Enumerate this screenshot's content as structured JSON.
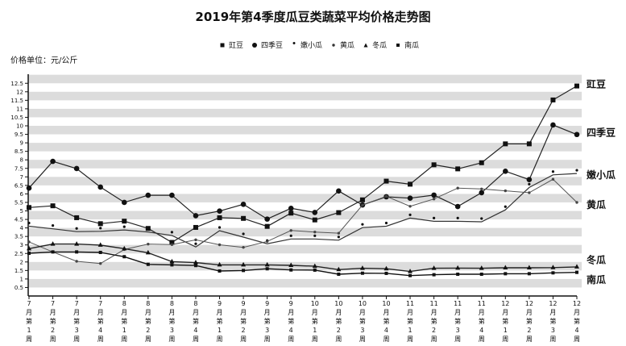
{
  "title": "2019年第4季度瓜豆类蔬菜平均价格走势图",
  "unit_label": "价格单位：元/公斤",
  "legend": [
    {
      "name": "豇豆",
      "marker": "square"
    },
    {
      "name": "四季豆",
      "marker": "circle"
    },
    {
      "name": "嫩小瓜",
      "marker": "dot"
    },
    {
      "name": "黄瓜",
      "marker": "plus"
    },
    {
      "name": "冬瓜",
      "marker": "triangle"
    },
    {
      "name": "南瓜",
      "marker": "small-square"
    }
  ],
  "chart_data": {
    "type": "line",
    "title": "2019年第4季度瓜豆类蔬菜平均价格走势图",
    "xlabel": "",
    "ylabel": "价格单位：元/公斤",
    "ylim": [
      0,
      13
    ],
    "yticks": [
      0.5,
      1,
      1.5,
      2,
      2.5,
      3,
      3.5,
      4,
      4.5,
      5,
      5.5,
      6,
      6.5,
      7,
      7.5,
      8,
      8.5,
      9,
      9.5,
      10,
      10.5,
      11,
      11.5,
      12,
      12.5
    ],
    "grid": "alternating horizontal bands",
    "legend_position": "top",
    "categories": [
      "7月第1周",
      "7月第2周",
      "7月第3周",
      "7月第4周",
      "8月第1周",
      "8月第2周",
      "8月第3周",
      "8月第4周",
      "9月第1周",
      "9月第2周",
      "9月第3周",
      "9月第4周",
      "10月第1周",
      "10月第2周",
      "10月第3周",
      "10月第4周",
      "11月第1周",
      "11月第2周",
      "11月第3周",
      "11月第4周",
      "12月第1周",
      "12月第2周",
      "12月第3周",
      "12月第4周"
    ],
    "category_lines": [
      [
        "7",
        "月",
        "第",
        "1",
        "周"
      ],
      [
        "7",
        "月",
        "第",
        "2",
        "周"
      ],
      [
        "7",
        "月",
        "第",
        "3",
        "周"
      ],
      [
        "7",
        "月",
        "第",
        "4",
        "周"
      ],
      [
        "8",
        "月",
        "第",
        "1",
        "周"
      ],
      [
        "8",
        "月",
        "第",
        "2",
        "周"
      ],
      [
        "8",
        "月",
        "第",
        "3",
        "周"
      ],
      [
        "8",
        "月",
        "第",
        "4",
        "周"
      ],
      [
        "9",
        "月",
        "第",
        "1",
        "周"
      ],
      [
        "9",
        "月",
        "第",
        "2",
        "周"
      ],
      [
        "9",
        "月",
        "第",
        "3",
        "周"
      ],
      [
        "9",
        "月",
        "第",
        "4",
        "周"
      ],
      [
        "10",
        "月",
        "第",
        "1",
        "周"
      ],
      [
        "10",
        "月",
        "第",
        "2",
        "周"
      ],
      [
        "10",
        "月",
        "第",
        "3",
        "周"
      ],
      [
        "10",
        "月",
        "第",
        "4",
        "周"
      ],
      [
        "11",
        "月",
        "第",
        "1",
        "周"
      ],
      [
        "11",
        "月",
        "第",
        "2",
        "周"
      ],
      [
        "11",
        "月",
        "第",
        "3",
        "周"
      ],
      [
        "11",
        "月",
        "第",
        "4",
        "周"
      ],
      [
        "12",
        "月",
        "第",
        "1",
        "周"
      ],
      [
        "12",
        "月",
        "第",
        "2",
        "周"
      ],
      [
        "12",
        "月",
        "第",
        "3",
        "周"
      ],
      [
        "12",
        "月",
        "第",
        "4",
        "周"
      ]
    ],
    "series": [
      {
        "name": "豇豆",
        "marker": "square",
        "values": [
          5.2,
          5.3,
          4.6,
          4.25,
          4.4,
          3.97,
          3.15,
          4.03,
          4.6,
          4.56,
          4.09,
          4.87,
          4.47,
          4.9,
          5.65,
          6.75,
          6.57,
          7.71,
          7.47,
          7.83,
          8.94,
          8.94,
          11.52,
          12.34
        ]
      },
      {
        "name": "四季豆",
        "marker": "circle",
        "values": [
          6.34,
          7.91,
          7.49,
          6.4,
          5.5,
          5.92,
          5.92,
          4.72,
          4.99,
          5.39,
          4.52,
          5.15,
          4.91,
          6.17,
          5.35,
          5.83,
          5.75,
          5.93,
          5.26,
          6.07,
          7.33,
          6.84,
          10.05,
          9.49
        ]
      },
      {
        "name": "嫩小瓜",
        "marker": "dot",
        "values": [
          4.1,
          3.95,
          3.78,
          3.8,
          3.88,
          3.76,
          3.56,
          2.88,
          3.84,
          3.46,
          3.07,
          3.35,
          3.35,
          3.28,
          4.02,
          4.1,
          4.58,
          4.39,
          4.39,
          4.36,
          5.06,
          6.38,
          7.12,
          7.2
        ]
      },
      {
        "name": "黄瓜",
        "marker": "plus",
        "values": [
          3.18,
          2.59,
          2.04,
          1.91,
          2.73,
          3.05,
          3.02,
          3.3,
          3.01,
          2.86,
          3.21,
          3.85,
          3.76,
          3.69,
          5.34,
          5.86,
          5.27,
          5.7,
          6.34,
          6.29,
          6.18,
          6.07,
          6.86,
          5.5
        ]
      },
      {
        "name": "冬瓜",
        "marker": "triangle",
        "values": [
          2.78,
          3.05,
          3.05,
          2.99,
          2.78,
          2.54,
          2.02,
          1.96,
          1.83,
          1.83,
          1.83,
          1.8,
          1.75,
          1.55,
          1.63,
          1.6,
          1.44,
          1.63,
          1.64,
          1.63,
          1.66,
          1.66,
          1.67,
          1.71
        ]
      },
      {
        "name": "南瓜",
        "marker": "small-square",
        "values": [
          2.51,
          2.59,
          2.59,
          2.56,
          2.31,
          1.86,
          1.83,
          1.79,
          1.47,
          1.5,
          1.6,
          1.53,
          1.52,
          1.28,
          1.34,
          1.33,
          1.2,
          1.25,
          1.28,
          1.28,
          1.31,
          1.31,
          1.36,
          1.39
        ]
      }
    ],
    "end_labels": [
      {
        "name": "豇豆",
        "y_value": 12.45
      },
      {
        "name": "四季豆",
        "y_value": 9.6
      },
      {
        "name": "嫩小瓜",
        "y_value": 7.1
      },
      {
        "name": "黄瓜",
        "y_value": 5.35
      },
      {
        "name": "冬瓜",
        "y_value": 2.1
      },
      {
        "name": "南瓜",
        "y_value": 0.95
      }
    ]
  }
}
